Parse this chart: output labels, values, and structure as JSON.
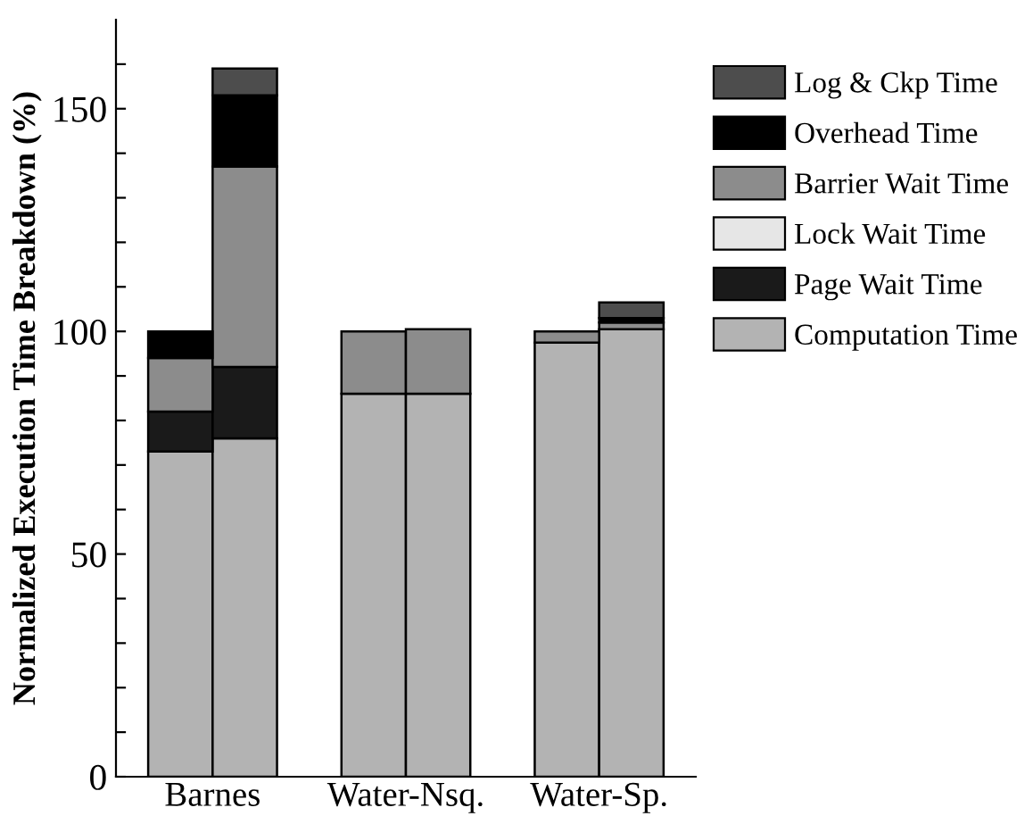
{
  "chart_data": {
    "type": "bar",
    "stacked": true,
    "ylabel": "Normalized Execution Time Breakdown (%)",
    "categories": [
      "Barnes",
      null,
      null,
      "Water-Nsq.",
      null,
      null,
      "Water-Sp.",
      null
    ],
    "series": [
      {
        "name": "Computation Time",
        "color": "#b3b3b3",
        "values": [
          73,
          76,
          null,
          86,
          86,
          null,
          97.5,
          100.5
        ]
      },
      {
        "name": "Page Wait Time",
        "color": "#1a1a1a",
        "values": [
          9,
          16,
          null,
          0,
          0,
          null,
          0,
          0
        ]
      },
      {
        "name": "Lock Wait Time",
        "color": "#e6e6e6",
        "values": [
          0,
          0,
          null,
          0,
          0,
          null,
          0,
          0
        ]
      },
      {
        "name": "Barrier Wait Time",
        "color": "#8c8c8c",
        "values": [
          12,
          45,
          null,
          14,
          14.5,
          null,
          2.5,
          1.5
        ]
      },
      {
        "name": "Overhead Time",
        "color": "#000000",
        "values": [
          6,
          16,
          null,
          0,
          0,
          null,
          0,
          1
        ]
      },
      {
        "name": "Log & Ckp Time",
        "color": "#4d4d4d",
        "values": [
          0,
          6,
          null,
          0,
          0,
          null,
          0,
          3.5
        ]
      }
    ],
    "ylim": [
      0,
      170
    ],
    "yticks": [
      0,
      {
        "value": 10,
        "label": null
      },
      {
        "value": 20,
        "label": null
      },
      {
        "value": 30,
        "label": null
      },
      {
        "value": 40,
        "label": null
      },
      50,
      {
        "value": 60,
        "label": null
      },
      {
        "value": 70,
        "label": null
      },
      {
        "value": 80,
        "label": null
      },
      {
        "value": 90,
        "label": null
      },
      100,
      {
        "value": 110,
        "label": null
      },
      {
        "value": 120,
        "label": null
      },
      {
        "value": 130,
        "label": null
      },
      {
        "value": 140,
        "label": null
      },
      150,
      {
        "value": 160,
        "label": null
      }
    ],
    "legend": "top right"
  }
}
